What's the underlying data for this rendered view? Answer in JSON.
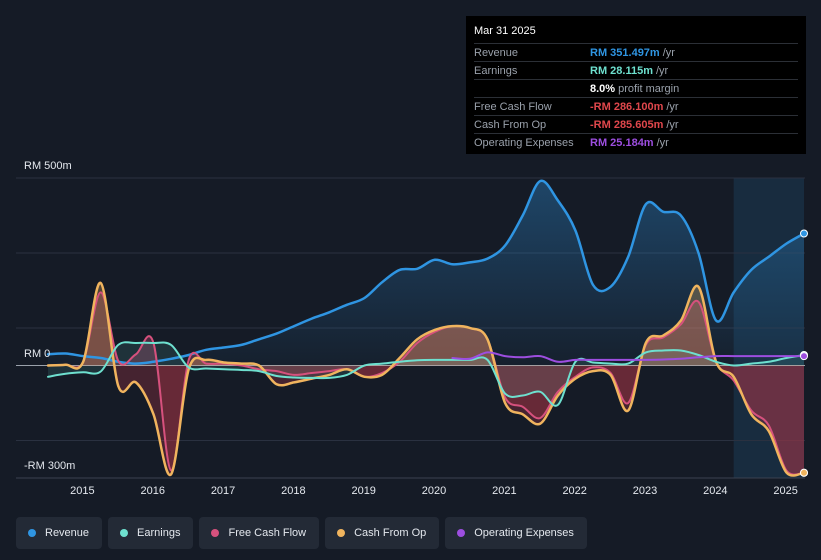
{
  "tooltip": {
    "date": "Mar 31 2025",
    "rows": [
      {
        "label": "Revenue",
        "value": "RM 351.497m",
        "unit": "/yr",
        "color": "#2f95e2"
      },
      {
        "label": "Earnings",
        "value": "RM 28.115m",
        "unit": "/yr",
        "color": "#6ee0cf"
      },
      {
        "label": "",
        "value": "8.0%",
        "unit": "profit margin",
        "color": "#ffffff"
      },
      {
        "label": "Free Cash Flow",
        "value": "-RM 286.100m",
        "unit": "/yr",
        "color": "#e0474c"
      },
      {
        "label": "Cash From Op",
        "value": "-RM 285.605m",
        "unit": "/yr",
        "color": "#e0474c"
      },
      {
        "label": "Operating Expenses",
        "value": "RM 25.184m",
        "unit": "/yr",
        "color": "#9d4ee0"
      }
    ]
  },
  "legend": [
    {
      "label": "Revenue",
      "color": "#2f95e2"
    },
    {
      "label": "Earnings",
      "color": "#6ee0cf"
    },
    {
      "label": "Free Cash Flow",
      "color": "#d6517d"
    },
    {
      "label": "Cash From Op",
      "color": "#f0b45e"
    },
    {
      "label": "Operating Expenses",
      "color": "#9d4ee0"
    }
  ],
  "chart_data": {
    "type": "line",
    "title": "",
    "xlabel": "",
    "ylabel": "",
    "ylim": [
      -300,
      500
    ],
    "xlim": [
      2014.5,
      2025.25
    ],
    "y_tick_labels": [
      "RM 500m",
      "RM 0",
      "-RM 300m"
    ],
    "x_tick_labels": [
      "2015",
      "2016",
      "2017",
      "2018",
      "2019",
      "2020",
      "2021",
      "2022",
      "2023",
      "2024",
      "2025"
    ],
    "highlight_range": [
      2024.25,
      2025.25
    ],
    "series": [
      {
        "name": "Revenue",
        "color": "#2f95e2",
        "x": [
          2014.5,
          2014.75,
          2015,
          2015.25,
          2015.5,
          2015.75,
          2016,
          2016.25,
          2016.5,
          2016.75,
          2017,
          2017.25,
          2017.5,
          2017.75,
          2018,
          2018.25,
          2018.5,
          2018.75,
          2019,
          2019.25,
          2019.5,
          2019.75,
          2020,
          2020.25,
          2020.5,
          2020.75,
          2021,
          2021.25,
          2021.5,
          2021.75,
          2022,
          2022.25,
          2022.5,
          2022.75,
          2023,
          2023.25,
          2023.5,
          2023.75,
          2024,
          2024.25,
          2024.5,
          2024.75,
          2025,
          2025.25
        ],
        "y": [
          30,
          32,
          25,
          20,
          10,
          5,
          10,
          18,
          28,
          42,
          48,
          55,
          70,
          85,
          105,
          125,
          142,
          162,
          180,
          222,
          255,
          258,
          282,
          270,
          275,
          285,
          320,
          400,
          492,
          440,
          360,
          215,
          210,
          290,
          430,
          410,
          400,
          300,
          120,
          195,
          255,
          290,
          325,
          352
        ]
      },
      {
        "name": "Earnings",
        "color": "#6ee0cf",
        "x": [
          2014.5,
          2014.75,
          2015,
          2015.25,
          2015.5,
          2015.75,
          2016,
          2016.25,
          2016.5,
          2016.75,
          2017,
          2017.25,
          2017.5,
          2017.75,
          2018,
          2018.25,
          2018.5,
          2018.75,
          2019,
          2019.25,
          2019.5,
          2019.75,
          2020,
          2020.25,
          2020.5,
          2020.75,
          2021,
          2021.25,
          2021.5,
          2021.75,
          2022,
          2022.25,
          2022.5,
          2022.75,
          2023,
          2023.25,
          2023.5,
          2023.75,
          2024,
          2024.25,
          2024.5,
          2024.75,
          2025,
          2025.25
        ],
        "y": [
          -30,
          -22,
          -18,
          -16,
          55,
          60,
          60,
          55,
          -5,
          -8,
          -10,
          -12,
          -15,
          -28,
          -32,
          -33,
          -33,
          -25,
          0,
          5,
          10,
          14,
          15,
          15,
          15,
          15,
          -75,
          -80,
          -70,
          -105,
          10,
          8,
          5,
          5,
          35,
          40,
          40,
          28,
          10,
          0,
          5,
          10,
          20,
          28
        ]
      },
      {
        "name": "Free Cash Flow",
        "color": "#d6517d",
        "x": [
          2014.5,
          2014.75,
          2015,
          2015.25,
          2015.5,
          2015.75,
          2016,
          2016.25,
          2016.5,
          2016.75,
          2017,
          2017.25,
          2017.5,
          2017.75,
          2018,
          2018.25,
          2018.5,
          2018.75,
          2019,
          2019.25,
          2019.5,
          2019.75,
          2020,
          2020.25,
          2020.5,
          2020.75,
          2021,
          2021.25,
          2021.5,
          2021.75,
          2022,
          2022.25,
          2022.5,
          2022.75,
          2023,
          2023.25,
          2023.5,
          2023.75,
          2024,
          2024.25,
          2024.5,
          2024.75,
          2025,
          2025.25
        ],
        "y": [
          0,
          2,
          10,
          195,
          12,
          30,
          60,
          -280,
          15,
          5,
          5,
          0,
          -10,
          -15,
          -25,
          -20,
          -15,
          -10,
          -30,
          -20,
          10,
          60,
          90,
          105,
          100,
          70,
          -85,
          -110,
          -140,
          -70,
          -30,
          -5,
          -20,
          -100,
          55,
          75,
          110,
          170,
          10,
          -40,
          -120,
          -160,
          -280,
          -286
        ]
      },
      {
        "name": "Cash From Op",
        "color": "#f0b45e",
        "x": [
          2014.5,
          2014.75,
          2015,
          2015.25,
          2015.5,
          2015.75,
          2016,
          2016.25,
          2016.5,
          2016.75,
          2017,
          2017.25,
          2017.5,
          2017.75,
          2018,
          2018.25,
          2018.5,
          2018.75,
          2019,
          2019.25,
          2019.5,
          2019.75,
          2020,
          2020.25,
          2020.5,
          2020.75,
          2021,
          2021.25,
          2021.5,
          2021.75,
          2022,
          2022.25,
          2022.5,
          2022.75,
          2023,
          2023.25,
          2023.5,
          2023.75,
          2024,
          2024.25,
          2024.5,
          2024.75,
          2025,
          2025.25
        ],
        "y": [
          0,
          2,
          10,
          220,
          -55,
          -45,
          -130,
          -290,
          -10,
          15,
          8,
          5,
          0,
          -50,
          -45,
          -35,
          -25,
          -10,
          -30,
          -25,
          20,
          70,
          95,
          105,
          100,
          70,
          -100,
          -130,
          -155,
          -80,
          -35,
          -15,
          -25,
          -120,
          60,
          80,
          120,
          210,
          10,
          -30,
          -130,
          -175,
          -285,
          -286
        ]
      },
      {
        "name": "Operating Expenses",
        "color": "#9d4ee0",
        "x": [
          2020.25,
          2020.5,
          2020.75,
          2021,
          2021.25,
          2021.5,
          2021.75,
          2022,
          2022.25,
          2022.5,
          2022.75,
          2023,
          2023.25,
          2023.5,
          2023.75,
          2024,
          2024.25,
          2024.5,
          2024.75,
          2025,
          2025.25
        ],
        "y": [
          20,
          18,
          35,
          25,
          22,
          25,
          10,
          15,
          15,
          15,
          15,
          15,
          16,
          18,
          22,
          25,
          25,
          25,
          25,
          25,
          25
        ]
      }
    ]
  }
}
